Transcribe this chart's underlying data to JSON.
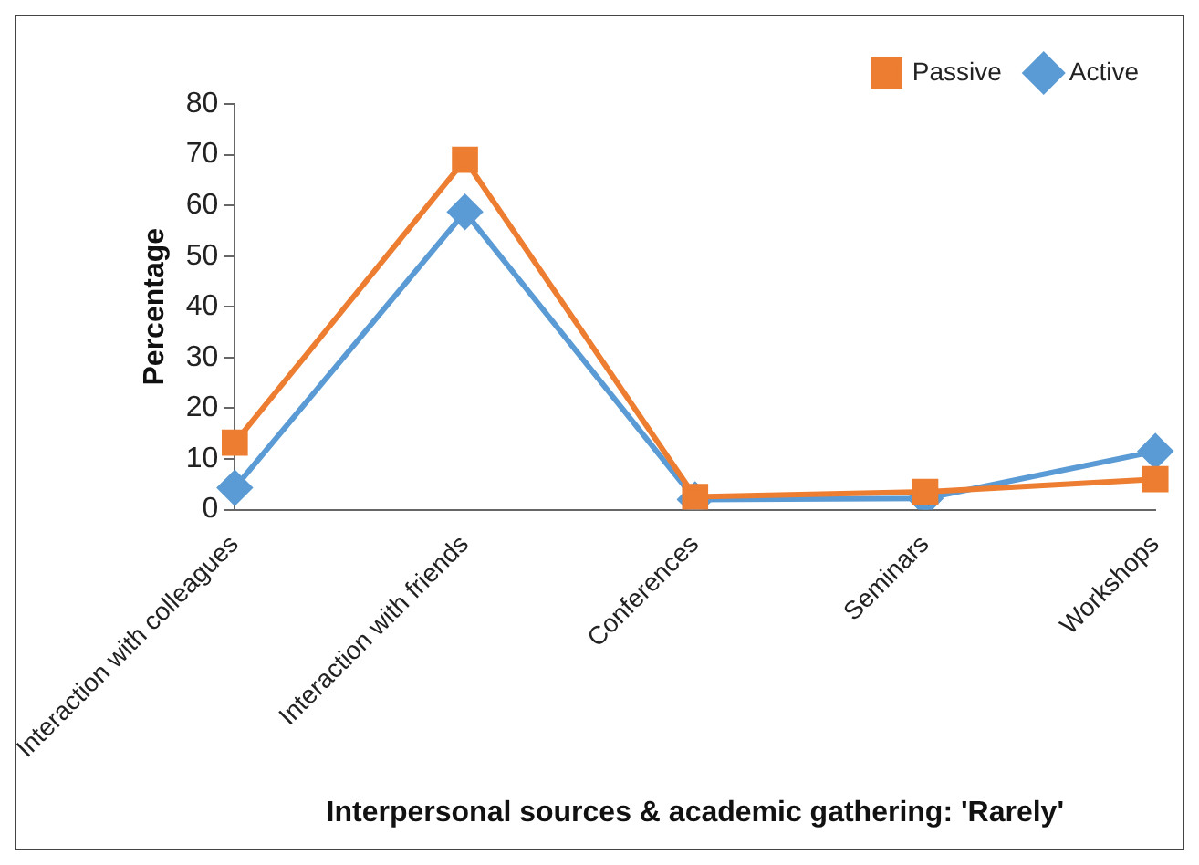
{
  "chart_data": {
    "type": "line",
    "xlabel": "Interpersonal sources & academic gathering: 'Rarely'",
    "ylabel": "Percentage",
    "categories": [
      "Interaction with colleagues",
      "Interaction with friends",
      "Conferences",
      "Seminars",
      "Workshops"
    ],
    "series": [
      {
        "name": "Active",
        "color": "#5b9bd5",
        "marker": "diamond",
        "values": [
          4.3,
          58.7,
          2,
          2.2,
          11.5
        ]
      },
      {
        "name": "Passive",
        "color": "#ed7d31",
        "marker": "square",
        "values": [
          13.2,
          69,
          2.5,
          3.5,
          6
        ]
      }
    ],
    "ylim": [
      0,
      80
    ],
    "yticks": [
      0,
      10,
      20,
      30,
      40,
      50,
      60,
      70,
      80
    ],
    "grid": false,
    "legend": "top right",
    "line_style": "solid"
  }
}
